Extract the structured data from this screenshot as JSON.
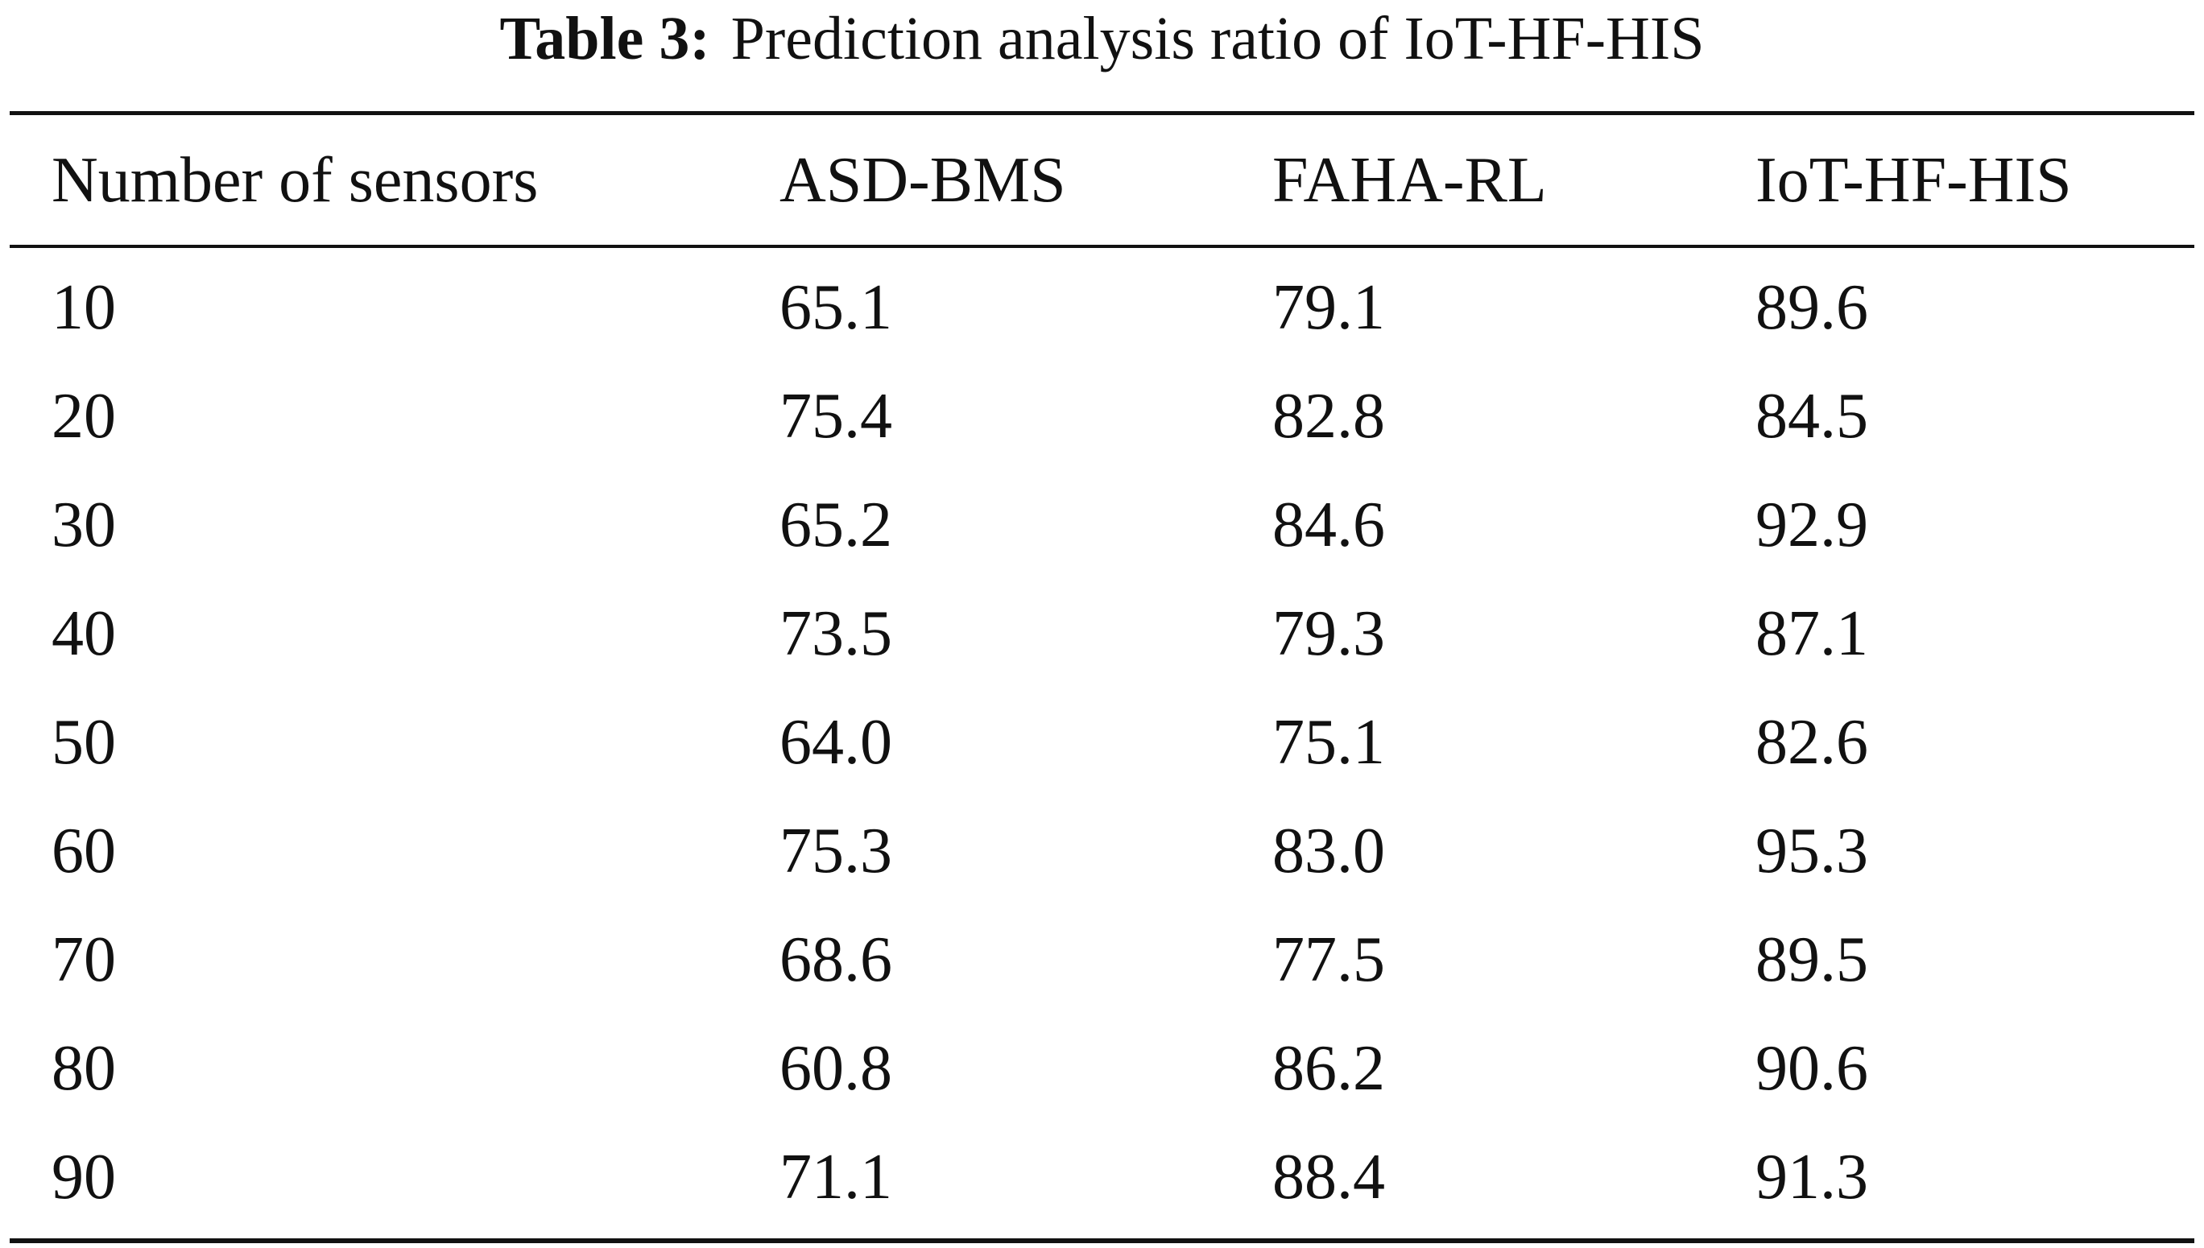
{
  "caption": {
    "label": "Table 3:",
    "text": "Prediction analysis ratio of IoT-HF-HIS"
  },
  "table": {
    "headers": [
      "Number of sensors",
      "ASD-BMS",
      "FAHA-RL",
      "IoT-HF-HIS"
    ],
    "rows": [
      [
        "10",
        "65.1",
        "79.1",
        "89.6"
      ],
      [
        "20",
        "75.4",
        "82.8",
        "84.5"
      ],
      [
        "30",
        "65.2",
        "84.6",
        "92.9"
      ],
      [
        "40",
        "73.5",
        "79.3",
        "87.1"
      ],
      [
        "50",
        "64.0",
        "75.1",
        "82.6"
      ],
      [
        "60",
        "75.3",
        "83.0",
        "95.3"
      ],
      [
        "70",
        "68.6",
        "77.5",
        "89.5"
      ],
      [
        "80",
        "60.8",
        "86.2",
        "90.6"
      ],
      [
        "90",
        "71.1",
        "88.4",
        "91.3"
      ]
    ]
  }
}
